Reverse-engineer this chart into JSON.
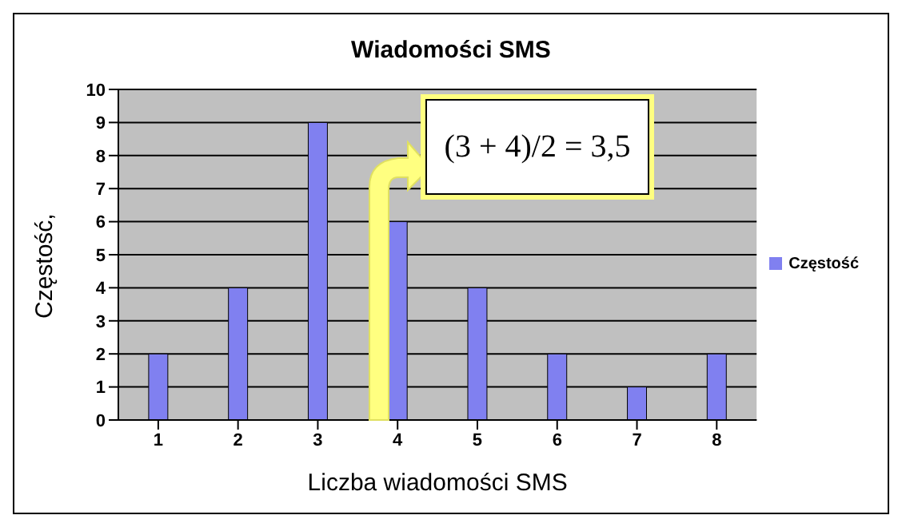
{
  "chart_data": {
    "type": "bar",
    "title": "Wiadomości SMS",
    "xlabel": "Liczba wiadomości SMS",
    "ylabel": "Częstość,",
    "categories": [
      "1",
      "2",
      "3",
      "4",
      "5",
      "6",
      "7",
      "8"
    ],
    "series": [
      {
        "name": "Częstość",
        "color": "#8080f0",
        "values": [
          2,
          4,
          9,
          6,
          4,
          2,
          1,
          2
        ]
      }
    ],
    "ylim": [
      0,
      10
    ],
    "yticks": [
      0,
      1,
      2,
      3,
      4,
      5,
      6,
      7,
      8,
      9,
      10
    ],
    "grid": "y",
    "legend": "right",
    "annotations": [
      "(3 + 4)/2 = 3,5"
    ]
  }
}
